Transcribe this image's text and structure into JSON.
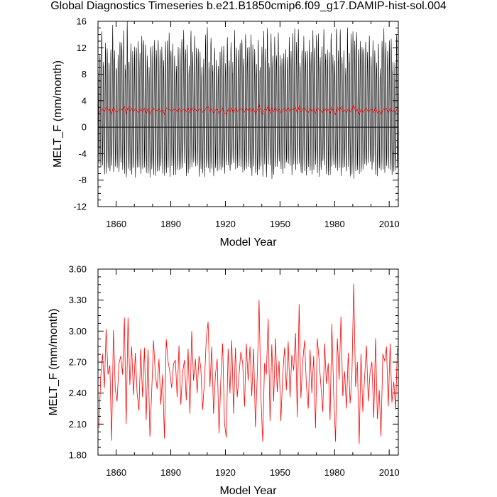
{
  "title": "Global Diagnostics Timeseries b.e21.B1850cmip6.f09_g17.DAMIP-hist-sol.004",
  "colors": {
    "monthly_line": "#000000",
    "annual_line": "#ff0000",
    "axes": "#000000"
  },
  "chart_data": [
    {
      "type": "line",
      "xlabel": "Model Year",
      "ylabel": "MELT_F (mm/month)",
      "xlim": [
        1850,
        2015
      ],
      "ylim": [
        -12,
        16
      ],
      "xticks": [
        1860,
        1890,
        1920,
        1950,
        1980,
        2010
      ],
      "xtick_labels": [
        "1860",
        "1890",
        "1920",
        "1950",
        "1980",
        "2010"
      ],
      "yticks": [
        -12,
        -8,
        -4,
        0,
        4,
        8,
        12,
        16
      ],
      "ytick_labels": [
        "-12",
        "-8",
        "-4",
        "0",
        "4",
        "8",
        "12",
        "16"
      ],
      "reference_line": 0,
      "monthly_envelope": {
        "description_of_series": "monthly values oscillating each year",
        "typical_max": 12,
        "typical_min": -6.5,
        "extreme_max": 15.8,
        "extreme_min": -8.4
      },
      "annual_mean_years": [
        1850,
        1851,
        1852,
        1853,
        1854,
        1855,
        1856,
        1857,
        1858,
        1859,
        1860,
        1861,
        1862,
        1863,
        1864,
        1865,
        1866,
        1867,
        1868,
        1869,
        1870,
        1871,
        1872,
        1873,
        1874,
        1875,
        1876,
        1877,
        1878,
        1879,
        1880,
        1881,
        1882,
        1883,
        1884,
        1885,
        1886,
        1887,
        1888,
        1889,
        1890,
        1891,
        1892,
        1893,
        1894,
        1895,
        1896,
        1897,
        1898,
        1899,
        1900,
        1901,
        1902,
        1903,
        1904,
        1905,
        1906,
        1907,
        1908,
        1909,
        1910,
        1911,
        1912,
        1913,
        1914,
        1915,
        1916,
        1917,
        1918,
        1919,
        1920,
        1921,
        1922,
        1923,
        1924,
        1925,
        1926,
        1927,
        1928,
        1929,
        1930,
        1931,
        1932,
        1933,
        1934,
        1935,
        1936,
        1937,
        1938,
        1939,
        1940,
        1941,
        1942,
        1943,
        1944,
        1945,
        1946,
        1947,
        1948,
        1949,
        1950,
        1951,
        1952,
        1953,
        1954,
        1955,
        1956,
        1957,
        1958,
        1959,
        1960,
        1961,
        1962,
        1963,
        1964,
        1965,
        1966,
        1967,
        1968,
        1969,
        1970,
        1971,
        1972,
        1973,
        1974,
        1975,
        1976,
        1977,
        1978,
        1979,
        1980,
        1981,
        1982,
        1983,
        1984,
        1985,
        1986,
        1987,
        1988,
        1989,
        1990,
        1991,
        1992,
        1993,
        1994,
        1995,
        1996,
        1997,
        1998,
        1999,
        2000,
        2001,
        2002,
        2003,
        2004,
        2005,
        2006,
        2007,
        2008,
        2009,
        2010,
        2011,
        2012,
        2013,
        2014
      ],
      "annual_mean_values": [
        2.06,
        2.55,
        2.78,
        2.45,
        3.02,
        2.58,
        2.67,
        1.94,
        3.01,
        2.43,
        2.32,
        2.68,
        2.76,
        2.58,
        3.13,
        2.1,
        3.13,
        2.48,
        2.85,
        2.38,
        2.79,
        2.4,
        2.23,
        2.83,
        2.36,
        2.84,
        2.14,
        2.82,
        1.98,
        2.4,
        2.91,
        2.58,
        2.44,
        2.73,
        2.29,
        2.58,
        1.96,
        2.92,
        2.71,
        2.6,
        2.45,
        2.68,
        2.72,
        2.36,
        2.86,
        2.29,
        2.6,
        2.72,
        2.33,
        2.83,
        2.2,
        3.0,
        2.52,
        2.73,
        2.4,
        2.76,
        2.65,
        2.24,
        2.52,
        2.92,
        3.09,
        2.46,
        2.85,
        2.2,
        2.58,
        2.73,
        2.01,
        2.53,
        2.88,
        2.11,
        1.97,
        2.83,
        2.4,
        2.91,
        2.2,
        2.84,
        2.36,
        2.58,
        2.8,
        2.69,
        2.27,
        2.88,
        2.52,
        2.85,
        2.37,
        2.83,
        2.07,
        2.56,
        3.3,
        2.38,
        1.93,
        2.69,
        2.58,
        3.12,
        2.13,
        2.87,
        2.32,
        2.93,
        2.41,
        2.71,
        2.13,
        2.58,
        2.84,
        2.43,
        2.9,
        2.36,
        2.77,
        2.62,
        2.98,
        2.17,
        3.26,
        2.35,
        2.71,
        2.91,
        2.48,
        2.25,
        2.82,
        2.4,
        2.76,
        2.06,
        2.93,
        2.71,
        2.47,
        2.22,
        2.88,
        2.49,
        2.69,
        2.14,
        3.07,
        2.38,
        1.93,
        2.93,
        2.53,
        3.14,
        2.37,
        2.61,
        2.25,
        2.79,
        2.3,
        2.56,
        3.46,
        2.46,
        2.7,
        1.91,
        2.78,
        2.22,
        2.56,
        2.86,
        2.32,
        2.61,
        2.7,
        2.16,
        2.93,
        2.15,
        2.43,
        1.98,
        2.78,
        2.71,
        2.85,
        2.27,
        2.88,
        2.31,
        2.51,
        2.24,
        2.84
      ]
    },
    {
      "type": "line",
      "xlabel": "Model Year",
      "ylabel": "MELT_F (mm/month)",
      "xlim": [
        1850,
        2015
      ],
      "ylim": [
        1.8,
        3.6
      ],
      "xticks": [
        1860,
        1890,
        1920,
        1950,
        1980,
        2010
      ],
      "xtick_labels": [
        "1860",
        "1890",
        "1920",
        "1950",
        "1980",
        "2010"
      ],
      "yticks": [
        1.8,
        2.1,
        2.4,
        2.7,
        3.0,
        3.3,
        3.6
      ],
      "ytick_labels": [
        "1.80",
        "2.10",
        "2.40",
        "2.70",
        "3.00",
        "3.30",
        "3.60"
      ],
      "series_source": "annual_mean"
    }
  ]
}
